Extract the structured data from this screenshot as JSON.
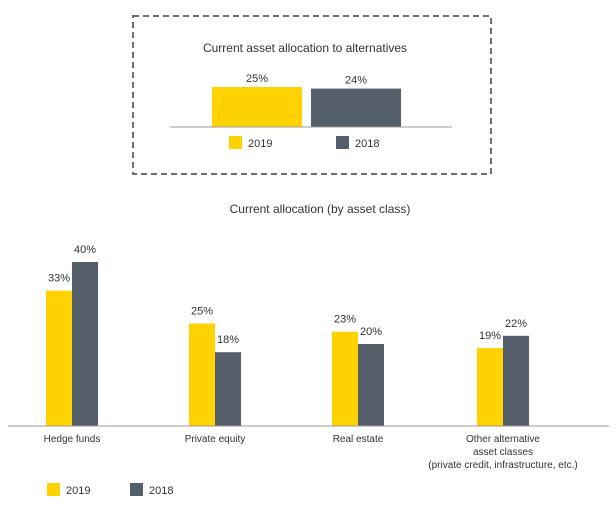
{
  "colors": {
    "y2019": "#FFD200",
    "y2018": "#555F6B",
    "axis": "#9A9A9A",
    "border": "#6E6E6E"
  },
  "chart_data": [
    {
      "type": "bar",
      "title": "Current asset allocation to alternatives",
      "categories": [
        ""
      ],
      "series": [
        {
          "name": "2019",
          "values": [
            25
          ],
          "labels": [
            "25%"
          ]
        },
        {
          "name": "2018",
          "values": [
            24
          ],
          "labels": [
            "24%"
          ]
        }
      ],
      "legend": "bottom",
      "ylim": [
        0,
        25
      ],
      "grid": false
    },
    {
      "type": "bar",
      "title": "Current allocation (by asset class)",
      "categories": [
        [
          "Hedge funds"
        ],
        [
          "Private equity"
        ],
        [
          "Real estate"
        ],
        [
          "Other alternative",
          "asset classes",
          "(private credit, infrastructure, etc.)"
        ]
      ],
      "series": [
        {
          "name": "2019",
          "values": [
            33,
            25,
            23,
            19
          ],
          "labels": [
            "33%",
            "25%",
            "23%",
            "19%"
          ]
        },
        {
          "name": "2018",
          "values": [
            40,
            18,
            20,
            22
          ],
          "labels": [
            "40%",
            "18%",
            "20%",
            "22%"
          ]
        }
      ],
      "legend": "bottom-left",
      "ylim": [
        0,
        40
      ],
      "grid": false
    }
  ]
}
